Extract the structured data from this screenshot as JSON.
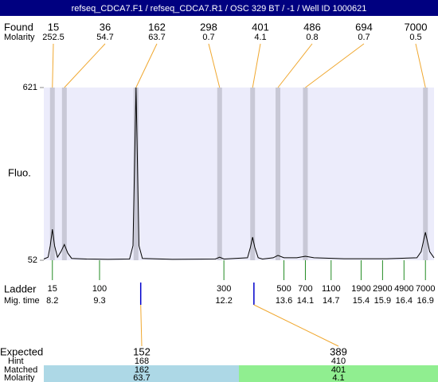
{
  "title": "refseq_CDCA7.F1 / refseq_CDCA7.R1 / OSC 329 BT / -1 / Well ID 1000621",
  "chart_data": {
    "type": "line",
    "y_label": "Fluo.",
    "xlim": [
      8.0,
      17.1
    ],
    "ylim": [
      52,
      621
    ],
    "yticks": [
      52,
      621
    ],
    "color": "#000000",
    "x": [
      8.0,
      8.1,
      8.15,
      8.2,
      8.25,
      8.32,
      8.4,
      8.48,
      8.56,
      8.65,
      9.0,
      9.5,
      10.0,
      10.08,
      10.12,
      10.15,
      10.18,
      10.22,
      10.3,
      11.0,
      12.0,
      12.1,
      12.2,
      12.75,
      12.82,
      12.87,
      12.92,
      13.0,
      13.1,
      13.35,
      13.46,
      13.6,
      13.9,
      14.1,
      14.3,
      15.0,
      16.0,
      16.7,
      16.8,
      16.9,
      17.0,
      17.1
    ],
    "values": [
      56,
      62,
      100,
      154,
      100,
      62,
      80,
      104,
      75,
      58,
      56,
      55,
      56,
      100,
      400,
      621,
      400,
      100,
      58,
      55,
      56,
      62,
      56,
      60,
      95,
      128,
      95,
      60,
      56,
      60,
      68,
      60,
      60,
      65,
      60,
      57,
      57,
      60,
      80,
      144,
      80,
      60
    ],
    "found": {
      "label": "Found",
      "molarity_label": "Molarity",
      "sizes": [
        15,
        36,
        162,
        298,
        401,
        486,
        694,
        7000
      ],
      "molarity": [
        252.5,
        54.7,
        63.7,
        0.7,
        4.1,
        0.8,
        0.7,
        0.5
      ],
      "times": [
        8.2,
        8.48,
        10.15,
        12.1,
        12.87,
        13.46,
        14.1,
        16.9
      ]
    },
    "ladder": {
      "label": "Ladder",
      "time_label": "Mig. time",
      "sizes": [
        15,
        100,
        300,
        500,
        700,
        1100,
        1900,
        2900,
        4900,
        7000
      ],
      "times": [
        8.2,
        9.3,
        12.2,
        13.6,
        14.1,
        14.7,
        15.4,
        15.9,
        16.4,
        16.9
      ]
    },
    "expected": {
      "label": "Expected",
      "hint_label": "Hint",
      "matched_label": "Matched",
      "molarity_label": "Molarity",
      "sizes": [
        152,
        389
      ],
      "times": [
        10.26,
        12.9
      ],
      "hint": [
        168,
        410
      ],
      "matched": [
        162,
        401
      ],
      "molarity": [
        63.7,
        4.1
      ]
    }
  }
}
